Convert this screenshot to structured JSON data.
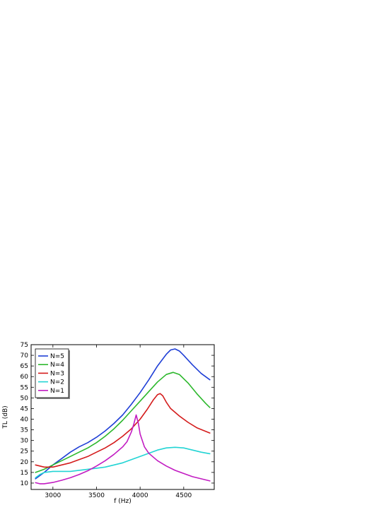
{
  "chart_data": {
    "type": "line",
    "xlabel": "f (Hz)",
    "ylabel": "TL (dB)",
    "xlim": [
      2750,
      4850
    ],
    "ylim": [
      7,
      75
    ],
    "xticks": [
      3000,
      3500,
      4000,
      4500
    ],
    "yticks": [
      10,
      15,
      20,
      25,
      30,
      35,
      40,
      45,
      50,
      55,
      60,
      65,
      70,
      75
    ],
    "grid": false,
    "legend_position": "top-left",
    "series": [
      {
        "name": "N=5",
        "color": "#1f3fd6",
        "points": [
          [
            2800,
            12
          ],
          [
            2900,
            15
          ],
          [
            3000,
            18.5
          ],
          [
            3100,
            21.5
          ],
          [
            3200,
            24.5
          ],
          [
            3300,
            27
          ],
          [
            3400,
            29
          ],
          [
            3500,
            31.5
          ],
          [
            3600,
            34.5
          ],
          [
            3700,
            38
          ],
          [
            3800,
            42
          ],
          [
            3900,
            47
          ],
          [
            4000,
            52.5
          ],
          [
            4100,
            58.5
          ],
          [
            4200,
            65
          ],
          [
            4300,
            70.5
          ],
          [
            4350,
            72.5
          ],
          [
            4400,
            73
          ],
          [
            4450,
            72
          ],
          [
            4500,
            70
          ],
          [
            4600,
            65.5
          ],
          [
            4700,
            61.5
          ],
          [
            4800,
            58.5
          ]
        ]
      },
      {
        "name": "N=4",
        "color": "#2db82d",
        "points": [
          [
            2800,
            15
          ],
          [
            2900,
            16.5
          ],
          [
            3000,
            18.5
          ],
          [
            3100,
            20.5
          ],
          [
            3200,
            22.5
          ],
          [
            3300,
            24.5
          ],
          [
            3400,
            26.5
          ],
          [
            3500,
            29
          ],
          [
            3600,
            32
          ],
          [
            3700,
            35.5
          ],
          [
            3800,
            39.5
          ],
          [
            3900,
            44
          ],
          [
            4000,
            48.5
          ],
          [
            4100,
            53
          ],
          [
            4200,
            57.5
          ],
          [
            4300,
            61
          ],
          [
            4380,
            62
          ],
          [
            4450,
            61
          ],
          [
            4550,
            57
          ],
          [
            4650,
            52
          ],
          [
            4750,
            47.5
          ],
          [
            4800,
            45.5
          ]
        ]
      },
      {
        "name": "N=3",
        "color": "#d41c1c",
        "points": [
          [
            2800,
            18.5
          ],
          [
            2900,
            17.5
          ],
          [
            3000,
            17.5
          ],
          [
            3100,
            18.5
          ],
          [
            3200,
            19.5
          ],
          [
            3300,
            21
          ],
          [
            3400,
            22.5
          ],
          [
            3500,
            24.5
          ],
          [
            3600,
            26.5
          ],
          [
            3700,
            29
          ],
          [
            3800,
            32
          ],
          [
            3900,
            35.5
          ],
          [
            4000,
            40
          ],
          [
            4080,
            44.5
          ],
          [
            4150,
            49
          ],
          [
            4200,
            51.5
          ],
          [
            4230,
            52
          ],
          [
            4260,
            51
          ],
          [
            4300,
            48
          ],
          [
            4350,
            45
          ],
          [
            4450,
            41.5
          ],
          [
            4550,
            38.5
          ],
          [
            4650,
            36
          ],
          [
            4800,
            33.5
          ]
        ]
      },
      {
        "name": "N=2",
        "color": "#22d4d4",
        "points": [
          [
            2800,
            12.5
          ],
          [
            2850,
            14
          ],
          [
            2900,
            15
          ],
          [
            3000,
            15.5
          ],
          [
            3100,
            15.5
          ],
          [
            3200,
            15.5
          ],
          [
            3300,
            16
          ],
          [
            3400,
            16.5
          ],
          [
            3500,
            17
          ],
          [
            3600,
            17.5
          ],
          [
            3700,
            18.5
          ],
          [
            3800,
            19.5
          ],
          [
            3900,
            21
          ],
          [
            4000,
            22.5
          ],
          [
            4100,
            24
          ],
          [
            4200,
            25.5
          ],
          [
            4300,
            26.5
          ],
          [
            4400,
            26.8
          ],
          [
            4500,
            26.5
          ],
          [
            4600,
            25.5
          ],
          [
            4700,
            24.5
          ],
          [
            4800,
            23.8
          ]
        ]
      },
      {
        "name": "N=1",
        "color": "#c21cc2",
        "points": [
          [
            2800,
            10.2
          ],
          [
            2850,
            9.7
          ],
          [
            2900,
            9.7
          ],
          [
            3000,
            10.3
          ],
          [
            3100,
            11.3
          ],
          [
            3200,
            12.5
          ],
          [
            3300,
            14
          ],
          [
            3400,
            15.8
          ],
          [
            3500,
            18
          ],
          [
            3600,
            20.5
          ],
          [
            3700,
            23.5
          ],
          [
            3800,
            27
          ],
          [
            3850,
            29.5
          ],
          [
            3900,
            34
          ],
          [
            3930,
            38
          ],
          [
            3955,
            42
          ],
          [
            3980,
            38
          ],
          [
            4000,
            33
          ],
          [
            4050,
            27
          ],
          [
            4100,
            24
          ],
          [
            4200,
            20.5
          ],
          [
            4300,
            18
          ],
          [
            4400,
            16
          ],
          [
            4500,
            14.5
          ],
          [
            4600,
            13
          ],
          [
            4700,
            12
          ],
          [
            4800,
            11
          ]
        ]
      }
    ]
  }
}
